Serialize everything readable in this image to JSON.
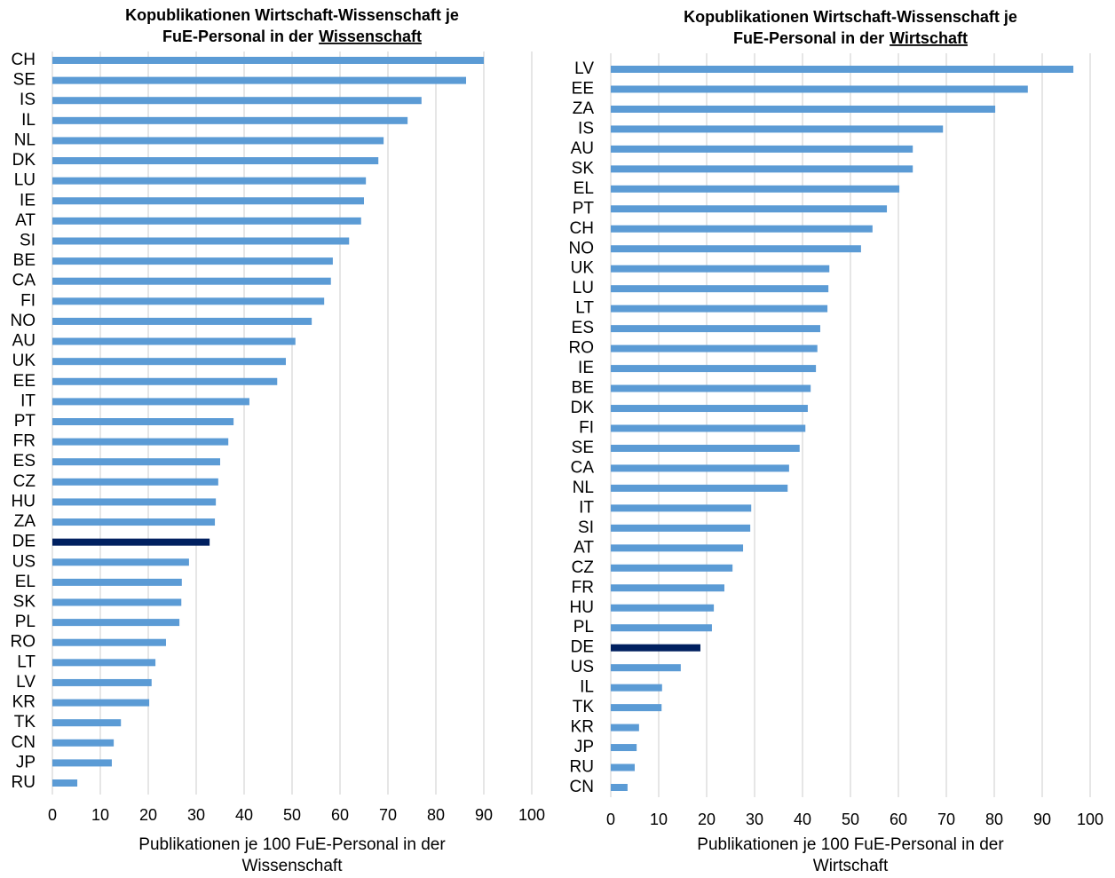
{
  "chart_data": [
    {
      "type": "bar",
      "orientation": "horizontal",
      "title": [
        "Kopublikationen Wirtschaft-Wissenschaft je",
        "FuE-Personal in der",
        "Wissenschaft"
      ],
      "x_label": [
        "Publikationen je 100 FuE-Personal in der",
        "Wissenschaft"
      ],
      "categories": [
        "CH",
        "SE",
        "IS",
        "IL",
        "NL",
        "DK",
        "LU",
        "IE",
        "AT",
        "SI",
        "BE",
        "CA",
        "FI",
        "NO",
        "AU",
        "UK",
        "EE",
        "IT",
        "PT",
        "FR",
        "ES",
        "CZ",
        "HU",
        "ZA",
        "DE",
        "US",
        "EL",
        "SK",
        "PL",
        "RO",
        "LT",
        "LV",
        "KR",
        "TK",
        "CN",
        "JP",
        "RU"
      ],
      "values": [
        90.0,
        86.3,
        77.0,
        74.1,
        69.1,
        68.0,
        65.4,
        65.0,
        64.4,
        61.9,
        58.5,
        58.1,
        56.7,
        54.1,
        50.7,
        48.7,
        46.9,
        41.1,
        37.8,
        36.7,
        35.0,
        34.6,
        34.1,
        33.9,
        32.8,
        28.5,
        27.0,
        26.9,
        26.5,
        23.7,
        21.5,
        20.7,
        20.2,
        14.3,
        12.8,
        12.4,
        5.2
      ],
      "colors": [
        "#5b9bd5",
        "#5b9bd5",
        "#5b9bd5",
        "#5b9bd5",
        "#5b9bd5",
        "#5b9bd5",
        "#5b9bd5",
        "#5b9bd5",
        "#5b9bd5",
        "#5b9bd5",
        "#5b9bd5",
        "#5b9bd5",
        "#5b9bd5",
        "#5b9bd5",
        "#5b9bd5",
        "#5b9bd5",
        "#5b9bd5",
        "#5b9bd5",
        "#5b9bd5",
        "#5b9bd5",
        "#5b9bd5",
        "#5b9bd5",
        "#5b9bd5",
        "#5b9bd5",
        "#002060",
        "#5b9bd5",
        "#5b9bd5",
        "#5b9bd5",
        "#5b9bd5",
        "#5b9bd5",
        "#5b9bd5",
        "#5b9bd5",
        "#5b9bd5",
        "#5b9bd5",
        "#5b9bd5",
        "#5b9bd5",
        "#5b9bd5"
      ],
      "xlim": [
        0,
        100
      ],
      "xticks": [
        0,
        10,
        20,
        30,
        40,
        50,
        60,
        70,
        80,
        90,
        100
      ],
      "grid": true
    },
    {
      "type": "bar",
      "orientation": "horizontal",
      "title": [
        "Kopublikationen Wirtschaft-Wissenschaft je",
        "FuE-Personal in der",
        "Wirtschaft"
      ],
      "x_label": [
        "Publikationen je 100 FuE-Personal in der",
        "Wirtschaft"
      ],
      "categories": [
        "LV",
        "EE",
        "ZA",
        "IS",
        "AU",
        "SK",
        "EL",
        "PT",
        "CH",
        "NO",
        "UK",
        "LU",
        "LT",
        "ES",
        "RO",
        "IE",
        "BE",
        "DK",
        "FI",
        "SE",
        "CA",
        "NL",
        "IT",
        "SI",
        "AT",
        "CZ",
        "FR",
        "HU",
        "PL",
        "DE",
        "US",
        "IL",
        "TK",
        "KR",
        "JP",
        "RU",
        "CN"
      ],
      "values": [
        96.5,
        87.0,
        80.2,
        69.3,
        63.0,
        63.0,
        60.2,
        57.6,
        54.6,
        52.2,
        45.6,
        45.4,
        45.2,
        43.7,
        43.1,
        42.8,
        41.7,
        41.1,
        40.6,
        39.4,
        37.2,
        36.9,
        29.3,
        29.1,
        27.6,
        25.4,
        23.7,
        21.5,
        21.1,
        18.7,
        14.6,
        10.7,
        10.6,
        5.9,
        5.4,
        5.0,
        3.5
      ],
      "colors": [
        "#5b9bd5",
        "#5b9bd5",
        "#5b9bd5",
        "#5b9bd5",
        "#5b9bd5",
        "#5b9bd5",
        "#5b9bd5",
        "#5b9bd5",
        "#5b9bd5",
        "#5b9bd5",
        "#5b9bd5",
        "#5b9bd5",
        "#5b9bd5",
        "#5b9bd5",
        "#5b9bd5",
        "#5b9bd5",
        "#5b9bd5",
        "#5b9bd5",
        "#5b9bd5",
        "#5b9bd5",
        "#5b9bd5",
        "#5b9bd5",
        "#5b9bd5",
        "#5b9bd5",
        "#5b9bd5",
        "#5b9bd5",
        "#5b9bd5",
        "#5b9bd5",
        "#5b9bd5",
        "#002060",
        "#5b9bd5",
        "#5b9bd5",
        "#5b9bd5",
        "#5b9bd5",
        "#5b9bd5",
        "#5b9bd5",
        "#5b9bd5"
      ],
      "xlim": [
        0,
        100
      ],
      "xticks": [
        0,
        10,
        20,
        30,
        40,
        50,
        60,
        70,
        80,
        90,
        100
      ],
      "grid": true
    }
  ]
}
